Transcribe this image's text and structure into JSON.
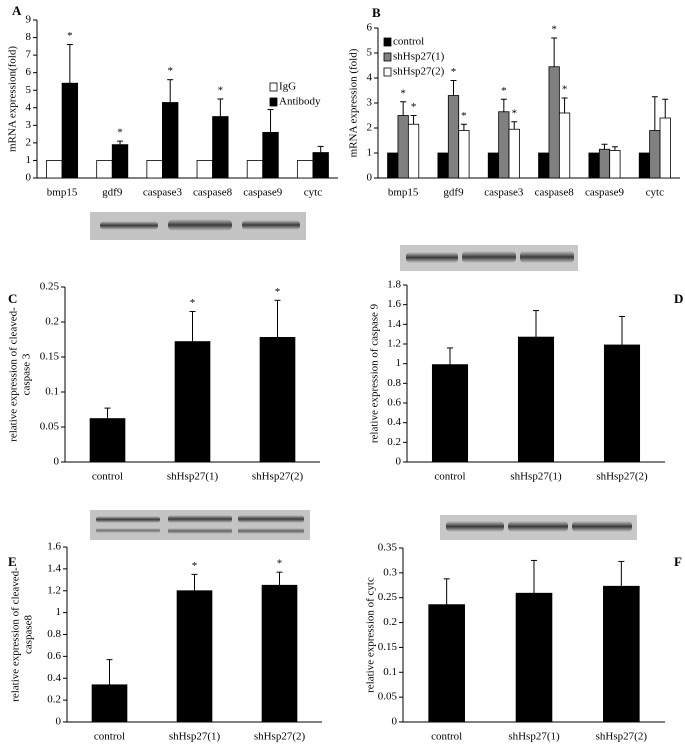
{
  "chart_data": [
    {
      "type": "bar",
      "panel": "A",
      "ylabel": [
        "mRNA expression(fold)"
      ],
      "categories": [
        "bmp15",
        "gdf9",
        "caspase3",
        "caspase8",
        "caspase9",
        "cytc"
      ],
      "series": [
        {
          "name": "IgG",
          "color": "#ffffff",
          "values": [
            1,
            1,
            1,
            1,
            1,
            1
          ]
        },
        {
          "name": "Antibody",
          "color": "#000000",
          "values": [
            5.4,
            1.9,
            4.3,
            3.5,
            2.6,
            1.45
          ],
          "errors": [
            2.2,
            0.2,
            1.3,
            1.0,
            1.3,
            0.35
          ],
          "annotations": [
            "*",
            "*",
            "*",
            "*",
            null,
            null
          ]
        }
      ],
      "ylim": [
        0,
        9
      ],
      "yticks": [
        0,
        1,
        2,
        3,
        4,
        5,
        6,
        7,
        8,
        9
      ],
      "legend": "center right"
    },
    {
      "type": "bar",
      "panel": "B",
      "ylabel": [
        "mRNA expression (fold)"
      ],
      "categories": [
        "bmp15",
        "gdf9",
        "caspase3",
        "caspase8",
        "caspase9",
        "cytc"
      ],
      "series": [
        {
          "name": "control",
          "color": "#000000",
          "values": [
            1,
            1,
            1,
            1,
            1,
            1
          ]
        },
        {
          "name": "shHsp27(1)",
          "color": "#808080",
          "values": [
            2.5,
            3.3,
            2.65,
            4.45,
            1.15,
            1.9
          ],
          "errors": [
            0.55,
            0.6,
            0.5,
            1.15,
            0.2,
            1.35
          ],
          "annotations": [
            "*",
            "*",
            "*",
            "*",
            null,
            null
          ]
        },
        {
          "name": "shHsp27(2)",
          "color": "#ffffff",
          "values": [
            2.15,
            1.9,
            1.95,
            2.6,
            1.1,
            2.4
          ],
          "errors": [
            0.35,
            0.25,
            0.3,
            0.6,
            0.15,
            0.75
          ],
          "annotations": [
            "*",
            "*",
            "*",
            "*",
            null,
            null
          ]
        }
      ],
      "ylim": [
        0,
        6
      ],
      "yticks": [
        0,
        1,
        2,
        3,
        4,
        5,
        6
      ],
      "legend": "upper left"
    },
    {
      "type": "bar",
      "panel": "C",
      "ylabel": [
        "relative expression of cleaved-",
        "caspase 3"
      ],
      "categories": [
        "control",
        "shHsp27(1)",
        "shHsp27(2)"
      ],
      "values": [
        0.062,
        0.172,
        0.178
      ],
      "errors": [
        0.015,
        0.043,
        0.053
      ],
      "annotations": [
        null,
        "*",
        "*"
      ],
      "color": "#000000",
      "ylim": [
        0,
        0.25
      ],
      "yticks": [
        0,
        0.05,
        0.1,
        0.15,
        0.2,
        0.25
      ]
    },
    {
      "type": "bar",
      "panel": "D",
      "ylabel": [
        "relative expression of caspase 9"
      ],
      "categories": [
        "control",
        "shHsp27(1)",
        "shHsp27(2)"
      ],
      "values": [
        0.99,
        1.27,
        1.19
      ],
      "errors": [
        0.17,
        0.27,
        0.29
      ],
      "color": "#000000",
      "ylim": [
        0,
        1.8
      ],
      "yticks": [
        0,
        0.2,
        0.4,
        0.6,
        0.8,
        1,
        1.2,
        1.4,
        1.6,
        1.8
      ]
    },
    {
      "type": "bar",
      "panel": "E",
      "ylabel": [
        "relative expression of cleaved-",
        "caspase8"
      ],
      "categories": [
        "control",
        "shHsp27(1)",
        "shHsp27(2)"
      ],
      "values": [
        0.34,
        1.2,
        1.25
      ],
      "errors": [
        0.23,
        0.15,
        0.12
      ],
      "annotations": [
        null,
        "*",
        "*"
      ],
      "color": "#000000",
      "ylim": [
        0,
        1.6
      ],
      "yticks": [
        0,
        0.2,
        0.4,
        0.6,
        0.8,
        1,
        1.2,
        1.4,
        1.6
      ]
    },
    {
      "type": "bar",
      "panel": "F",
      "ylabel": [
        "relative expression of cytc"
      ],
      "categories": [
        "control",
        "shHsp27(1)",
        "shHsp27(2)"
      ],
      "values": [
        0.236,
        0.259,
        0.273
      ],
      "errors": [
        0.052,
        0.066,
        0.05
      ],
      "color": "#000000",
      "ylim": [
        0,
        0.35
      ],
      "yticks": [
        0,
        0.05,
        0.1,
        0.15,
        0.2,
        0.25,
        0.3,
        0.35
      ]
    }
  ]
}
